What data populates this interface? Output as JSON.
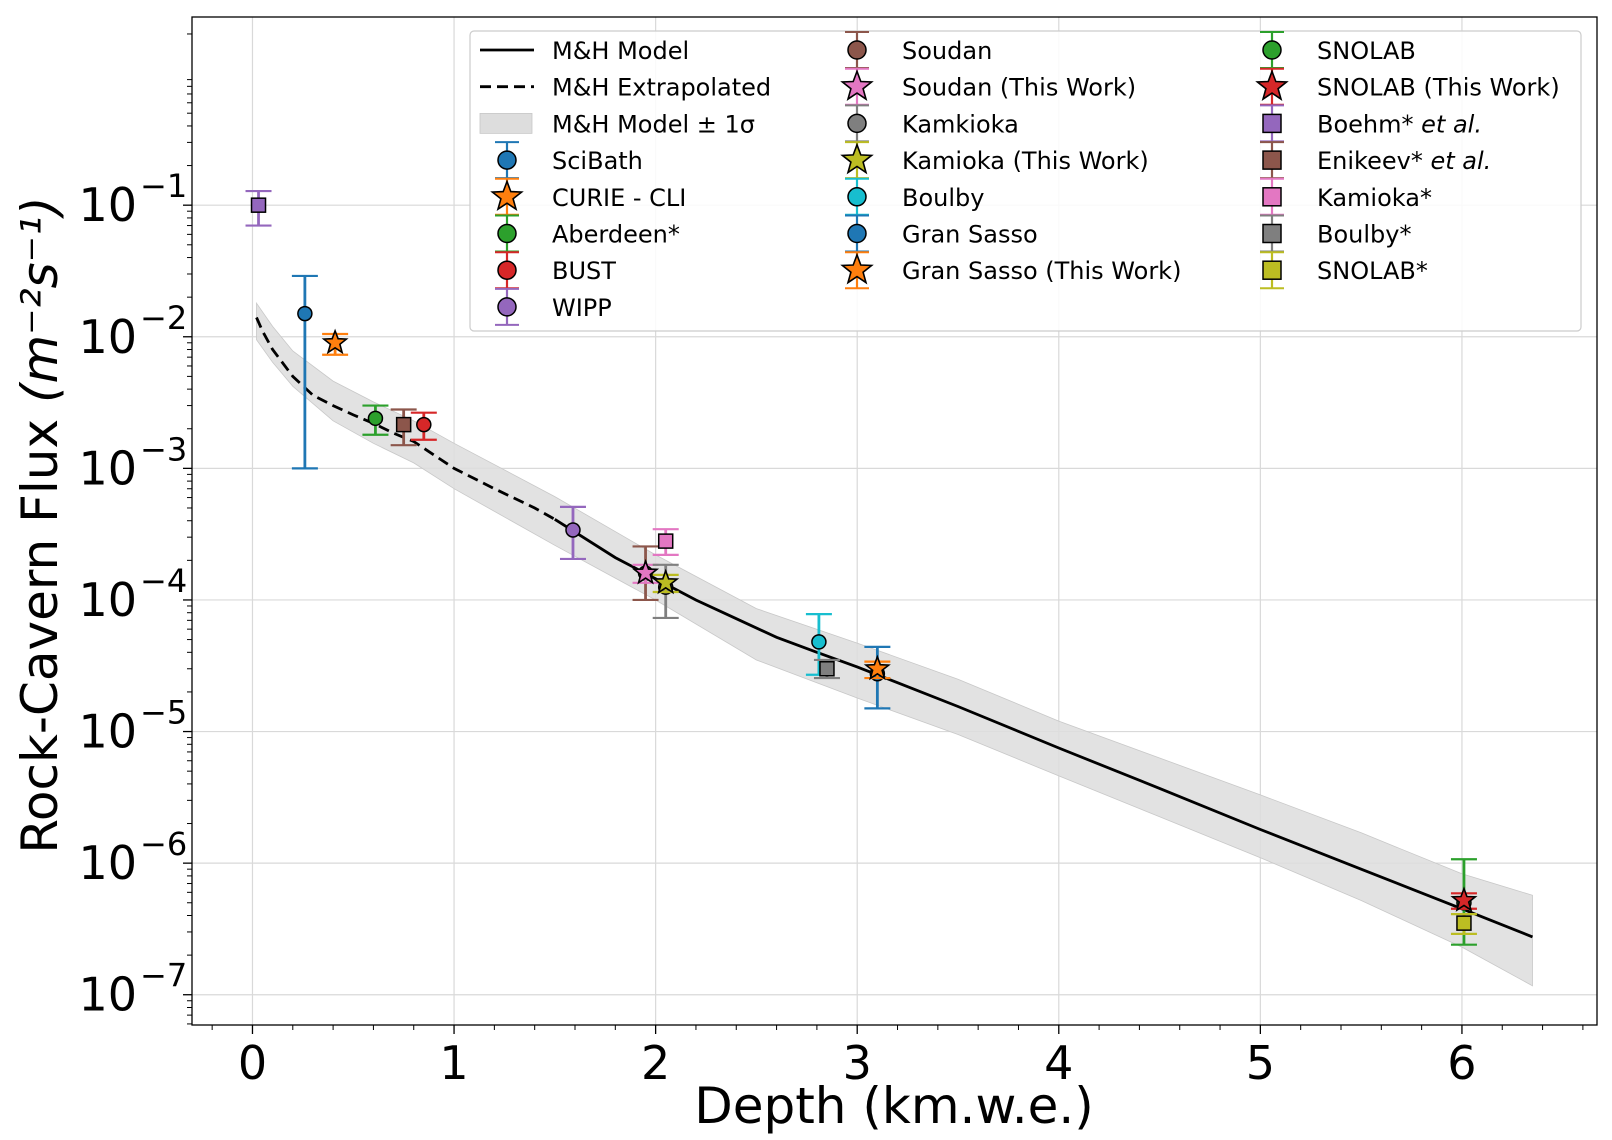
{
  "chart_data": {
    "type": "scatter",
    "title": "",
    "xlabel": "Depth (km.w.e.)",
    "ylabel": "Rock-Cavern Flux",
    "ylabel_units": "(m⁻²s⁻¹)",
    "xlim": [
      -0.3,
      6.67
    ],
    "ylim_log10": [
      -7.23,
      0.43
    ],
    "yscale": "log",
    "grid": true,
    "legend_position": "top-right",
    "x_ticks": [
      0,
      1,
      2,
      3,
      4,
      5,
      6
    ],
    "x_tick_labels": [
      "0",
      "1",
      "2",
      "3",
      "4",
      "5",
      "6"
    ],
    "y_ticks_exponent": [
      -1,
      -2,
      -3,
      -4,
      -5,
      -6,
      -7
    ],
    "y_tick_labels": [
      "10",
      "10",
      "10",
      "10",
      "10",
      "10",
      "10"
    ],
    "y_tick_sups": [
      "−1",
      "−2",
      "−3",
      "−4",
      "−5",
      "−6",
      "−7"
    ],
    "model": {
      "name": "M&H Model",
      "color": "#000000",
      "x": [
        1.5,
        1.8,
        2.0,
        2.2,
        2.4,
        2.6,
        2.8,
        3.0,
        3.2,
        3.5,
        4.0,
        4.5,
        5.0,
        5.5,
        6.0,
        6.35
      ],
      "y": [
        0.00041,
        0.00021,
        0.000145,
        0.0001,
        7.2e-05,
        5.2e-05,
        4e-05,
        3.1e-05,
        2.35e-05,
        1.55e-05,
        7.5e-06,
        3.7e-06,
        1.8e-06,
        9e-07,
        4.5e-07,
        2.75e-07
      ]
    },
    "extrapolated": {
      "name": "M&H Extrapolated",
      "color": "#000000",
      "x": [
        0.02,
        0.05,
        0.1,
        0.2,
        0.3,
        0.4,
        0.5,
        0.6,
        0.7,
        0.8,
        1.0,
        1.2,
        1.4,
        1.5
      ],
      "y": [
        0.014,
        0.011,
        0.008,
        0.005,
        0.0036,
        0.003,
        0.00255,
        0.0022,
        0.00185,
        0.0016,
        0.001,
        0.0007,
        0.0005,
        0.00041
      ]
    },
    "band": {
      "name": "M&H Model ± 1σ",
      "color": "#dddddd",
      "x": [
        0.02,
        0.1,
        0.2,
        0.4,
        0.6,
        0.8,
        1.0,
        1.5,
        2.0,
        2.5,
        3.0,
        3.5,
        4.0,
        4.5,
        5.0,
        5.5,
        6.0,
        6.35
      ],
      "upper": [
        0.018,
        0.012,
        0.0078,
        0.0046,
        0.0032,
        0.0023,
        0.00155,
        0.00061,
        0.00022,
        8.6e-05,
        4.7e-05,
        2.5e-05,
        1.2e-05,
        6.3e-06,
        3.3e-06,
        1.7e-06,
        8.3e-07,
        5.7e-07
      ],
      "lower": [
        0.0095,
        0.0064,
        0.0042,
        0.0023,
        0.00155,
        0.0011,
        0.0007,
        0.00026,
        0.0001,
        3.5e-05,
        1.8e-05,
        9.5e-06,
        4.6e-06,
        2.25e-06,
        1.1e-06,
        5.2e-07,
        2.3e-07,
        1.17e-07
      ]
    },
    "points": [
      {
        "name": "SciBath",
        "marker": "circle",
        "color": "#1f77b4",
        "x": 0.26,
        "y": 0.015,
        "ylo": 0.001,
        "yhi": 0.029,
        "in_legend": true
      },
      {
        "name": "CURIE - CLI",
        "marker": "star",
        "color": "#ff7f0e",
        "x": 0.41,
        "y": 0.009,
        "ylo": 0.0073,
        "yhi": 0.0105,
        "in_legend": true
      },
      {
        "name": "Aberdeen*",
        "marker": "circle",
        "color": "#2ca02c",
        "x": 0.61,
        "y": 0.0024,
        "ylo": 0.0018,
        "yhi": 0.003,
        "in_legend": true
      },
      {
        "name": "BUST",
        "marker": "circle",
        "color": "#d62728",
        "x": 0.85,
        "y": 0.00215,
        "ylo": 0.00165,
        "yhi": 0.00265,
        "in_legend": true
      },
      {
        "name": "WIPP",
        "marker": "circle",
        "color": "#9467bd",
        "x": 1.59,
        "y": 0.00034,
        "ylo": 0.000205,
        "yhi": 0.00051,
        "in_legend": true
      },
      {
        "name": "Soudan",
        "marker": "circle",
        "color": "#8c564b",
        "x": 1.95,
        "y": 0.00016,
        "ylo": 0.0001,
        "yhi": 0.000255,
        "in_legend": true
      },
      {
        "name": "Soudan (This Work)",
        "marker": "star",
        "color": "#e377c2",
        "x": 1.95,
        "y": 0.00016,
        "ylo": 0.000135,
        "yhi": 0.000185,
        "in_legend": true
      },
      {
        "name": "Kamkioka",
        "marker": "circle",
        "color": "#7f7f7f",
        "x": 2.05,
        "y": 0.000125,
        "ylo": 7.3e-05,
        "yhi": 0.000185,
        "in_legend": true
      },
      {
        "name": "Kamioka (This Work)",
        "marker": "star",
        "color": "#bcbd22",
        "x": 2.05,
        "y": 0.000135,
        "ylo": 0.000115,
        "yhi": 0.000155,
        "in_legend": true
      },
      {
        "name": "Boulby",
        "marker": "circle",
        "color": "#17becf",
        "x": 2.81,
        "y": 4.8e-05,
        "ylo": 2.7e-05,
        "yhi": 7.8e-05,
        "in_legend": true
      },
      {
        "name": "Gran Sasso",
        "marker": "circle",
        "color": "#1f77b4",
        "x": 3.1,
        "y": 2.75e-05,
        "ylo": 1.5e-05,
        "yhi": 4.4e-05,
        "in_legend": true
      },
      {
        "name": "Gran Sasso (This Work)",
        "marker": "star",
        "color": "#ff7f0e",
        "x": 3.1,
        "y": 3e-05,
        "ylo": 2.55e-05,
        "yhi": 3.4e-05,
        "in_legend": true
      },
      {
        "name": "SNOLAB",
        "marker": "circle",
        "color": "#2ca02c",
        "x": 6.01,
        "y": 5e-07,
        "ylo": 2.4e-07,
        "yhi": 1.07e-06,
        "in_legend": true
      },
      {
        "name": "SNOLAB (This Work)",
        "marker": "star",
        "color": "#d62728",
        "x": 6.01,
        "y": 5.2e-07,
        "ylo": 4.5e-07,
        "yhi": 5.9e-07,
        "in_legend": true
      },
      {
        "name": "Boehm* et al.",
        "marker": "square",
        "color": "#9467bd",
        "x": 0.03,
        "y": 0.1,
        "ylo": 0.07,
        "yhi": 0.128,
        "in_legend": true
      },
      {
        "name": "Enikeev* et al.",
        "marker": "square",
        "color": "#8c564b",
        "x": 0.75,
        "y": 0.00215,
        "ylo": 0.0015,
        "yhi": 0.0028,
        "in_legend": true
      },
      {
        "name": "Kamioka*",
        "marker": "square",
        "color": "#e377c2",
        "x": 2.05,
        "y": 0.00028,
        "ylo": 0.00022,
        "yhi": 0.000345,
        "in_legend": true
      },
      {
        "name": "Boulby*",
        "marker": "square",
        "color": "#7f7f7f",
        "x": 2.85,
        "y": 3e-05,
        "ylo": 2.55e-05,
        "yhi": 3.5e-05,
        "in_legend": true
      },
      {
        "name": "SNOLAB*",
        "marker": "square",
        "color": "#bcbd22",
        "x": 6.01,
        "y": 3.5e-07,
        "ylo": 2.9e-07,
        "yhi": 4.1e-07,
        "in_legend": true
      }
    ],
    "legend_columns": [
      [
        {
          "label": "M&H Model",
          "kind": "line",
          "dash": false
        },
        {
          "label": "M&H Extrapolated",
          "kind": "line",
          "dash": true
        },
        {
          "label": "M&H Model ± 1σ",
          "kind": "band"
        },
        {
          "label": "SciBath",
          "kind": "point"
        },
        {
          "label": "CURIE - CLI",
          "kind": "point"
        },
        {
          "label": "Aberdeen*",
          "kind": "point"
        },
        {
          "label": "BUST",
          "kind": "point"
        },
        {
          "label": "WIPP",
          "kind": "point"
        }
      ],
      [
        {
          "label": "Soudan",
          "kind": "point"
        },
        {
          "label": "Soudan (This Work)",
          "kind": "point"
        },
        {
          "label": "Kamkioka",
          "kind": "point"
        },
        {
          "label": "Kamioka (This Work)",
          "kind": "point"
        },
        {
          "label": "Boulby",
          "kind": "point"
        },
        {
          "label": "Gran Sasso",
          "kind": "point"
        },
        {
          "label": "Gran Sasso (This Work)",
          "kind": "point"
        }
      ],
      [
        {
          "label": "SNOLAB",
          "kind": "point"
        },
        {
          "label": "SNOLAB (This Work)",
          "kind": "point"
        },
        {
          "label": "Boehm* et al.",
          "kind": "point"
        },
        {
          "label": "Enikeev* et al.",
          "kind": "point"
        },
        {
          "label": "Kamioka*",
          "kind": "point"
        },
        {
          "label": "Boulby*",
          "kind": "point"
        },
        {
          "label": "SNOLAB*",
          "kind": "point"
        }
      ]
    ]
  }
}
